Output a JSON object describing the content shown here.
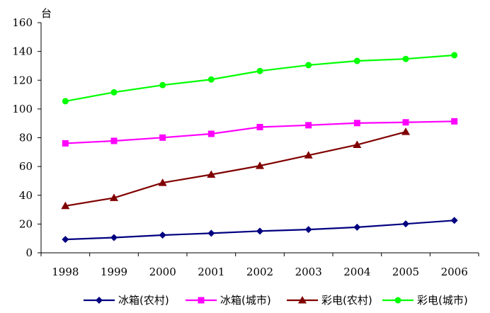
{
  "chart_data": {
    "type": "line",
    "title": "",
    "xlabel": "",
    "ylabel": "台",
    "x": [
      "1998",
      "1999",
      "2000",
      "2001",
      "2002",
      "2003",
      "2004",
      "2005",
      "2006"
    ],
    "ylim": [
      0,
      160
    ],
    "yticks": [
      "0",
      "20",
      "40",
      "60",
      "80",
      "100",
      "120",
      "140",
      "160"
    ],
    "grid": false,
    "legend": "bottom",
    "series": [
      {
        "name": "冰箱(农村)",
        "color": "#000080",
        "marker": "diamond",
        "values": [
          9.3,
          10.6,
          12.3,
          13.6,
          15.1,
          16.2,
          17.8,
          20.1,
          22.5
        ]
      },
      {
        "name": "冰箱(城市)",
        "color": "#ff00ff",
        "marker": "square",
        "values": [
          76.1,
          77.8,
          80.1,
          82.7,
          87.4,
          88.7,
          90.2,
          90.7,
          91.4
        ]
      },
      {
        "name": "彩电(农村)",
        "color": "#800000",
        "marker": "triangle",
        "values": [
          32.6,
          38.2,
          48.7,
          54.4,
          60.5,
          67.8,
          75.1,
          84.1,
          null
        ]
      },
      {
        "name": "彩电(城市)",
        "color": "#00ff00",
        "marker": "circle",
        "values": [
          105.4,
          111.6,
          116.6,
          120.5,
          126.4,
          130.5,
          133.4,
          134.8,
          137.4
        ]
      }
    ]
  }
}
